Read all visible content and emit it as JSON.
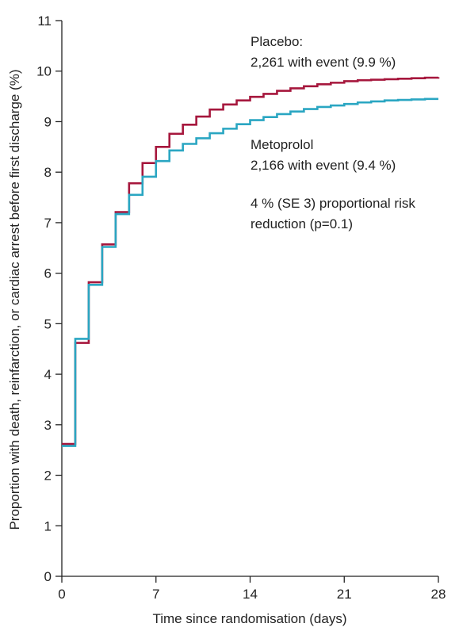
{
  "chart_data": {
    "type": "line",
    "title": "",
    "xlabel": "Time since randomisation (days)",
    "ylabel": "Proportion with death, reinfarction, or cardiac arrest before first discharge (%)",
    "xlim": [
      0,
      28
    ],
    "ylim": [
      0,
      11
    ],
    "xticks": [
      0,
      7,
      14,
      21,
      28
    ],
    "yticks": [
      0,
      1,
      2,
      3,
      4,
      5,
      6,
      7,
      8,
      9,
      10,
      11
    ],
    "grid": false,
    "step": true,
    "colors": {
      "placebo": "#a6173d",
      "metoprolol": "#2aa6c2"
    },
    "series": [
      {
        "name": "Placebo",
        "color": "#a6173d",
        "x": [
          0,
          1,
          2,
          3,
          4,
          5,
          6,
          7,
          8,
          9,
          10,
          11,
          12,
          13,
          14,
          15,
          16,
          17,
          18,
          19,
          20,
          21,
          22,
          23,
          24,
          25,
          26,
          27,
          28
        ],
        "y": [
          2.62,
          4.62,
          5.82,
          6.57,
          7.21,
          7.78,
          8.18,
          8.5,
          8.76,
          8.94,
          9.1,
          9.24,
          9.34,
          9.42,
          9.49,
          9.55,
          9.61,
          9.66,
          9.7,
          9.74,
          9.77,
          9.8,
          9.82,
          9.83,
          9.84,
          9.85,
          9.86,
          9.87,
          9.88
        ]
      },
      {
        "name": "Metoprolol",
        "color": "#2aa6c2",
        "x": [
          0,
          1,
          2,
          3,
          4,
          5,
          6,
          7,
          8,
          9,
          10,
          11,
          12,
          13,
          14,
          15,
          16,
          17,
          18,
          19,
          20,
          21,
          22,
          23,
          24,
          25,
          26,
          27,
          28
        ],
        "y": [
          2.58,
          4.7,
          5.77,
          6.52,
          7.17,
          7.55,
          7.91,
          8.22,
          8.43,
          8.56,
          8.67,
          8.77,
          8.86,
          8.95,
          9.03,
          9.09,
          9.15,
          9.2,
          9.25,
          9.29,
          9.32,
          9.35,
          9.38,
          9.4,
          9.42,
          9.43,
          9.44,
          9.45,
          9.45
        ]
      }
    ],
    "annotations": {
      "placebo_line1": "Placebo:",
      "placebo_line2": "2,261 with event (9.9 %)",
      "metoprolol_line1": "Metoprolol",
      "metoprolol_line2": "2,166 with event (9.4 %)",
      "risk_line1": "4 % (SE 3) proportional risk",
      "risk_line2": "reduction (p=0.1)"
    }
  }
}
